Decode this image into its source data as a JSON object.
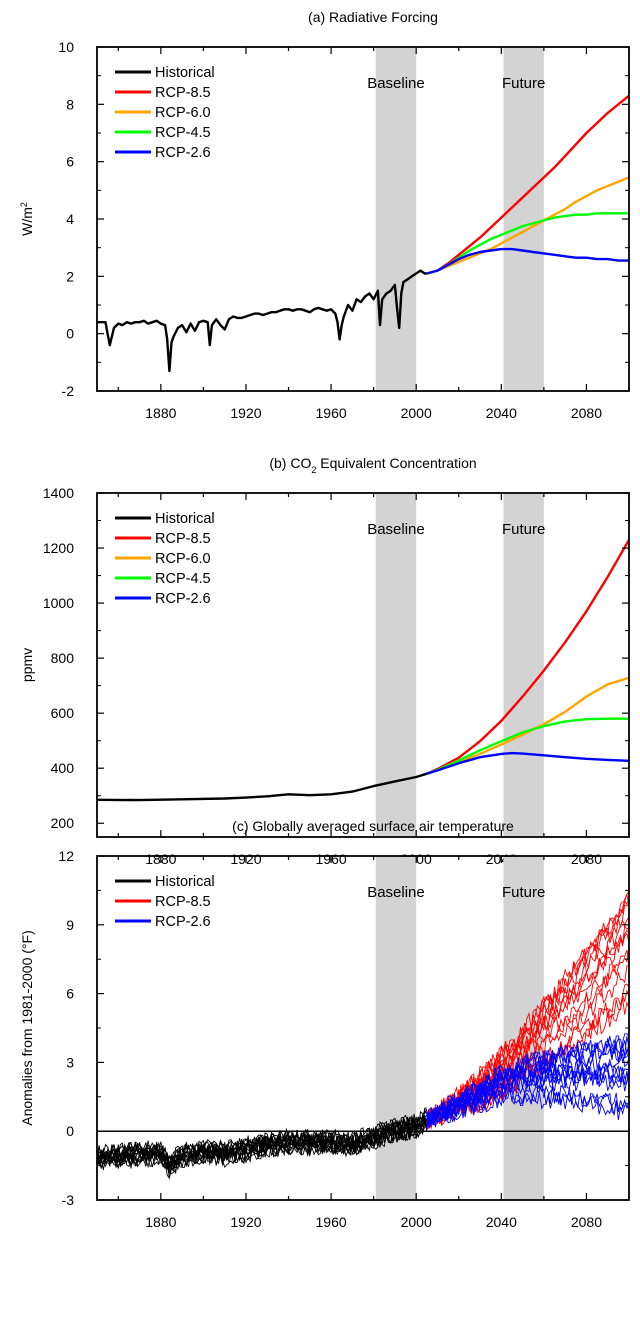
{
  "chart_data": [
    {
      "type": "line",
      "title_prefix": "(a) Radiative Forcing",
      "ylabel": "W/m",
      "ylabel_sup": "2",
      "xlim": [
        1850,
        2100
      ],
      "ylim": [
        -2,
        10
      ],
      "xticks": [
        "1880",
        "1920",
        "1960",
        "2000",
        "2040",
        "2080"
      ],
      "yticks": [
        "-2",
        "0",
        "2",
        "4",
        "6",
        "8",
        "10"
      ],
      "shaded": [
        {
          "label": "Baseline",
          "from": 1981,
          "to": 2000
        },
        {
          "label": "Future",
          "from": 2041,
          "to": 2060
        }
      ],
      "legend_position": "top-left",
      "series": [
        {
          "name": "Historical",
          "color": "#000000",
          "x": [
            1850,
            1852,
            1854,
            1855,
            1856,
            1858,
            1860,
            1862,
            1864,
            1866,
            1868,
            1870,
            1872,
            1874,
            1876,
            1878,
            1880,
            1882,
            1883,
            1884,
            1885,
            1886,
            1888,
            1890,
            1892,
            1894,
            1896,
            1898,
            1900,
            1902,
            1903,
            1904,
            1906,
            1908,
            1910,
            1912,
            1914,
            1916,
            1918,
            1920,
            1922,
            1924,
            1926,
            1928,
            1930,
            1932,
            1934,
            1936,
            1938,
            1940,
            1942,
            1944,
            1946,
            1948,
            1950,
            1952,
            1954,
            1956,
            1958,
            1960,
            1962,
            1963,
            1964,
            1965,
            1966,
            1968,
            1970,
            1972,
            1974,
            1976,
            1978,
            1980,
            1982,
            1983,
            1984,
            1986,
            1988,
            1990,
            1991,
            1992,
            1993,
            1994,
            1996,
            1998,
            2000,
            2002,
            2004,
            2005
          ],
          "y": [
            0.4,
            0.4,
            0.4,
            0.0,
            -0.4,
            0.2,
            0.35,
            0.3,
            0.4,
            0.35,
            0.4,
            0.4,
            0.45,
            0.35,
            0.4,
            0.45,
            0.35,
            0.3,
            -0.2,
            -1.3,
            -0.3,
            -0.1,
            0.2,
            0.3,
            0.05,
            0.35,
            0.1,
            0.4,
            0.45,
            0.4,
            -0.4,
            0.3,
            0.5,
            0.3,
            0.15,
            0.5,
            0.6,
            0.55,
            0.55,
            0.6,
            0.65,
            0.7,
            0.7,
            0.65,
            0.7,
            0.75,
            0.75,
            0.8,
            0.85,
            0.85,
            0.8,
            0.85,
            0.85,
            0.8,
            0.75,
            0.85,
            0.9,
            0.85,
            0.8,
            0.85,
            0.7,
            0.4,
            -0.2,
            0.3,
            0.6,
            1.0,
            0.8,
            1.2,
            1.1,
            1.3,
            1.4,
            1.2,
            1.5,
            0.3,
            1.2,
            1.4,
            1.5,
            1.7,
            0.9,
            0.2,
            1.4,
            1.8,
            1.9,
            2.0,
            2.1,
            2.2,
            2.1,
            2.1
          ]
        },
        {
          "name": "RCP-8.5",
          "color": "#ff0000",
          "x": [
            2005,
            2010,
            2015,
            2020,
            2025,
            2030,
            2035,
            2040,
            2045,
            2050,
            2055,
            2060,
            2065,
            2070,
            2075,
            2080,
            2085,
            2090,
            2095,
            2100
          ],
          "y": [
            2.1,
            2.2,
            2.45,
            2.75,
            3.05,
            3.35,
            3.7,
            4.05,
            4.4,
            4.75,
            5.1,
            5.45,
            5.8,
            6.2,
            6.6,
            7.0,
            7.35,
            7.7,
            8.0,
            8.3
          ]
        },
        {
          "name": "RCP-6.0",
          "color": "#ffa500",
          "x": [
            2005,
            2010,
            2015,
            2020,
            2025,
            2030,
            2035,
            2040,
            2045,
            2050,
            2055,
            2060,
            2065,
            2070,
            2075,
            2080,
            2085,
            2090,
            2095,
            2100
          ],
          "y": [
            2.1,
            2.2,
            2.35,
            2.5,
            2.65,
            2.8,
            2.95,
            3.15,
            3.35,
            3.55,
            3.75,
            3.95,
            4.15,
            4.35,
            4.6,
            4.8,
            5.0,
            5.15,
            5.3,
            5.45
          ]
        },
        {
          "name": "RCP-4.5",
          "color": "#00ff00",
          "x": [
            2005,
            2010,
            2015,
            2020,
            2025,
            2030,
            2035,
            2040,
            2045,
            2050,
            2055,
            2060,
            2065,
            2070,
            2075,
            2080,
            2085,
            2090,
            2095,
            2100
          ],
          "y": [
            2.1,
            2.2,
            2.4,
            2.65,
            2.9,
            3.1,
            3.3,
            3.45,
            3.6,
            3.75,
            3.85,
            3.95,
            4.05,
            4.1,
            4.15,
            4.15,
            4.2,
            4.2,
            4.2,
            4.2
          ]
        },
        {
          "name": "RCP-2.6",
          "color": "#0000ff",
          "x": [
            2005,
            2010,
            2015,
            2020,
            2025,
            2030,
            2035,
            2040,
            2045,
            2050,
            2055,
            2060,
            2065,
            2070,
            2075,
            2080,
            2085,
            2090,
            2095,
            2100
          ],
          "y": [
            2.1,
            2.2,
            2.4,
            2.6,
            2.75,
            2.85,
            2.9,
            2.95,
            2.95,
            2.9,
            2.85,
            2.8,
            2.75,
            2.7,
            2.65,
            2.65,
            2.6,
            2.6,
            2.55,
            2.55
          ]
        }
      ]
    },
    {
      "type": "line",
      "title_prefix": "(b) CO",
      "title_sub": "2",
      "title_suffix": " Equivalent Concentration",
      "ylabel": "ppmv",
      "xlim": [
        1850,
        2100
      ],
      "ylim": [
        150,
        1400
      ],
      "xticks": [
        "1880",
        "1920",
        "1960",
        "2000",
        "2040",
        "2080"
      ],
      "yticks": [
        "200",
        "400",
        "600",
        "800",
        "1000",
        "1200",
        "1400"
      ],
      "shaded": [
        {
          "label": "Baseline",
          "from": 1981,
          "to": 2000
        },
        {
          "label": "Future",
          "from": 2041,
          "to": 2060
        }
      ],
      "legend_position": "top-left",
      "series": [
        {
          "name": "Historical",
          "color": "#000000",
          "x": [
            1850,
            1870,
            1890,
            1910,
            1920,
            1930,
            1940,
            1950,
            1960,
            1970,
            1980,
            1990,
            2000,
            2005
          ],
          "y": [
            285,
            284,
            287,
            290,
            293,
            298,
            305,
            302,
            305,
            315,
            335,
            352,
            368,
            380
          ]
        },
        {
          "name": "RCP-8.5",
          "color": "#ff0000",
          "x": [
            2005,
            2010,
            2020,
            2030,
            2040,
            2050,
            2060,
            2070,
            2080,
            2090,
            2100
          ],
          "y": [
            380,
            397,
            438,
            498,
            572,
            660,
            755,
            858,
            970,
            1095,
            1230
          ]
        },
        {
          "name": "RCP-6.0",
          "color": "#ffa500",
          "x": [
            2005,
            2010,
            2020,
            2030,
            2040,
            2050,
            2060,
            2070,
            2080,
            2090,
            2100
          ],
          "y": [
            380,
            394,
            423,
            452,
            486,
            522,
            560,
            605,
            660,
            705,
            728
          ]
        },
        {
          "name": "RCP-4.5",
          "color": "#00ff00",
          "x": [
            2005,
            2010,
            2020,
            2030,
            2040,
            2050,
            2060,
            2070,
            2080,
            2090,
            2100
          ],
          "y": [
            380,
            394,
            428,
            465,
            498,
            530,
            553,
            570,
            578,
            580,
            580
          ]
        },
        {
          "name": "RCP-2.6",
          "color": "#0000ff",
          "x": [
            2005,
            2010,
            2020,
            2030,
            2040,
            2045,
            2050,
            2060,
            2070,
            2080,
            2090,
            2100
          ],
          "y": [
            380,
            392,
            418,
            440,
            452,
            455,
            453,
            447,
            440,
            434,
            430,
            427
          ]
        }
      ]
    },
    {
      "type": "line",
      "title_prefix": "(c) Globally averaged surface air temperature",
      "ylabel": "Anomalies from 1981-2000 (°F)",
      "xlim": [
        1850,
        2100
      ],
      "ylim": [
        -3,
        12
      ],
      "xticks": [
        "1880",
        "1920",
        "1960",
        "2000",
        "2040",
        "2080"
      ],
      "yticks": [
        "-3",
        "0",
        "3",
        "6",
        "9",
        "12"
      ],
      "zero_line": 0,
      "shaded": [
        {
          "label": "Baseline",
          "from": 1981,
          "to": 2000
        },
        {
          "label": "Future",
          "from": 2041,
          "to": 2060
        }
      ],
      "legend_position": "top-left",
      "series": [
        {
          "name": "Historical",
          "color": "#000000",
          "x": [
            1850,
            1860,
            1870,
            1880,
            1884,
            1890,
            1900,
            1910,
            1920,
            1930,
            1940,
            1950,
            1960,
            1970,
            1980,
            1985,
            1990,
            1995,
            2000,
            2005
          ],
          "y": [
            -1.2,
            -1.1,
            -1.0,
            -1.0,
            -1.5,
            -1.1,
            -0.9,
            -1.0,
            -0.8,
            -0.6,
            -0.5,
            -0.5,
            -0.5,
            -0.6,
            -0.3,
            -0.1,
            0.0,
            0.1,
            0.2,
            0.5
          ],
          "spread": 0.7
        },
        {
          "name": "RCP-8.5",
          "color": "#ff0000",
          "x": [
            2005,
            2010,
            2020,
            2030,
            2040,
            2050,
            2060,
            2070,
            2080,
            2090,
            2100
          ],
          "y": [
            0.5,
            0.7,
            1.2,
            1.8,
            2.5,
            3.3,
            4.2,
            5.1,
            6.0,
            7.0,
            8.0
          ],
          "spread_end": 2.5
        },
        {
          "name": "RCP-2.6",
          "color": "#0000ff",
          "x": [
            2005,
            2010,
            2020,
            2030,
            2040,
            2050,
            2060,
            2070,
            2080,
            2090,
            2100
          ],
          "y": [
            0.5,
            0.7,
            1.1,
            1.5,
            1.9,
            2.1,
            2.2,
            2.2,
            2.2,
            2.2,
            2.2
          ],
          "spread_end": 1.8
        }
      ]
    }
  ]
}
